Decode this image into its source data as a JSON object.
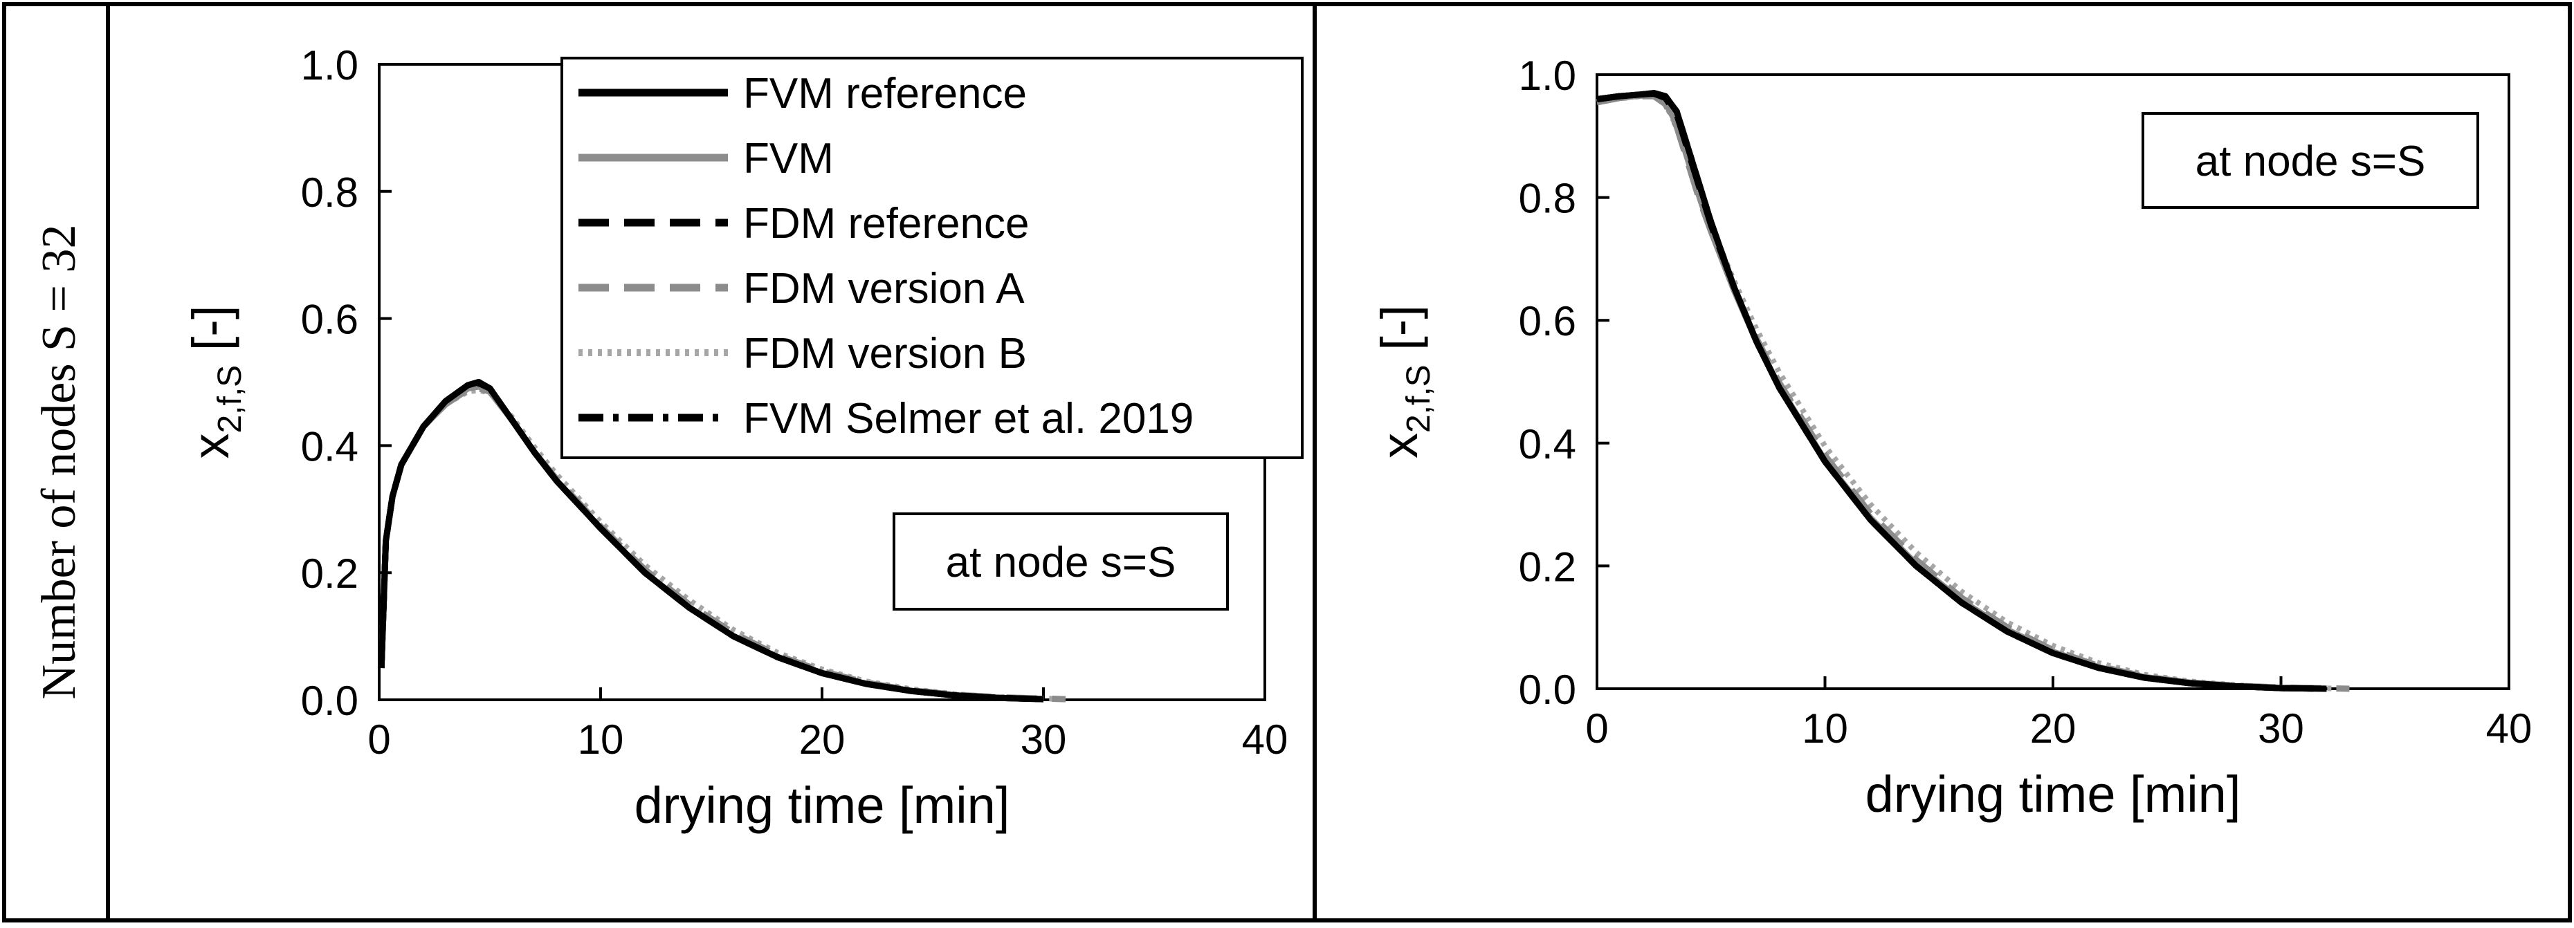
{
  "row_label": "Number of nodes S = 32",
  "legend": {
    "entries": [
      {
        "label": "FVM reference",
        "color": "#000000",
        "style": "solid"
      },
      {
        "label": "FVM",
        "color": "#8c8c8c",
        "style": "solid"
      },
      {
        "label": "FDM reference",
        "color": "#000000",
        "style": "dashed"
      },
      {
        "label": "FDM version A",
        "color": "#8c8c8c",
        "style": "dashed"
      },
      {
        "label": "FDM version B",
        "color": "#a6a6a6",
        "style": "dotted"
      },
      {
        "label": "FVM Selmer et al. 2019",
        "color": "#000000",
        "style": "dashdot"
      }
    ]
  },
  "chart_data": [
    {
      "type": "line",
      "annotation": "at node s=S",
      "xlabel": "drying time [min]",
      "ylabel": "x2,f,S [-]",
      "ylabel_main": "x",
      "ylabel_sub": "2,f,S",
      "ylabel_tail": "[-]",
      "xlim": [
        0,
        40
      ],
      "ylim": [
        0,
        1
      ],
      "x_ticks": [
        "0",
        "10",
        "20",
        "30",
        "40"
      ],
      "y_ticks": [
        "0.0",
        "0.2",
        "0.4",
        "0.6",
        "0.8",
        "1.0"
      ],
      "grid": false,
      "legend_position": "top-right",
      "series": [
        {
          "name": "FVM reference",
          "x": [
            0.1,
            0.3,
            0.6,
            1,
            2,
            3,
            4,
            4.5,
            5,
            6,
            7,
            8,
            10,
            12,
            14,
            16,
            18,
            20,
            22,
            24,
            26,
            28,
            30
          ],
          "y": [
            0.05,
            0.25,
            0.32,
            0.37,
            0.43,
            0.47,
            0.495,
            0.5,
            0.49,
            0.44,
            0.39,
            0.345,
            0.27,
            0.2,
            0.145,
            0.1,
            0.067,
            0.042,
            0.025,
            0.014,
            0.007,
            0.003,
            0.001
          ]
        },
        {
          "name": "FVM",
          "x": [
            0.1,
            0.3,
            0.6,
            1,
            2,
            3,
            4,
            4.5,
            5,
            6,
            7,
            8,
            10,
            12,
            14,
            16,
            18,
            20,
            22,
            24,
            26,
            28,
            30
          ],
          "y": [
            0.05,
            0.25,
            0.32,
            0.37,
            0.43,
            0.465,
            0.49,
            0.493,
            0.485,
            0.44,
            0.39,
            0.345,
            0.27,
            0.2,
            0.145,
            0.1,
            0.067,
            0.042,
            0.025,
            0.014,
            0.007,
            0.003,
            0.001
          ]
        },
        {
          "name": "FDM reference",
          "x": [
            0.1,
            0.3,
            0.6,
            1,
            2,
            3,
            4,
            4.5,
            5,
            6,
            7,
            8,
            10,
            12,
            14,
            16,
            18,
            20,
            22,
            24,
            26,
            28,
            30
          ],
          "y": [
            0.05,
            0.25,
            0.32,
            0.37,
            0.43,
            0.47,
            0.495,
            0.498,
            0.49,
            0.44,
            0.39,
            0.345,
            0.27,
            0.2,
            0.145,
            0.1,
            0.067,
            0.042,
            0.025,
            0.014,
            0.007,
            0.003,
            0.001
          ]
        },
        {
          "name": "FDM version A",
          "x": [
            0.1,
            0.3,
            0.6,
            1,
            2,
            3,
            4,
            4.5,
            5,
            6,
            7,
            8,
            10,
            12,
            14,
            16,
            18,
            20,
            22,
            24,
            26,
            28,
            31
          ],
          "y": [
            0.05,
            0.25,
            0.32,
            0.37,
            0.43,
            0.465,
            0.488,
            0.49,
            0.485,
            0.44,
            0.39,
            0.348,
            0.273,
            0.205,
            0.15,
            0.105,
            0.07,
            0.045,
            0.027,
            0.015,
            0.008,
            0.004,
            0.001
          ]
        },
        {
          "name": "FDM version B",
          "x": [
            0.1,
            0.3,
            0.6,
            1,
            2,
            3,
            4,
            4.5,
            5,
            6,
            7,
            8,
            10,
            12,
            14,
            16,
            18,
            20,
            22,
            24,
            26,
            28,
            31
          ],
          "y": [
            0.05,
            0.25,
            0.32,
            0.37,
            0.43,
            0.465,
            0.485,
            0.487,
            0.483,
            0.445,
            0.398,
            0.355,
            0.28,
            0.212,
            0.157,
            0.11,
            0.074,
            0.048,
            0.029,
            0.017,
            0.009,
            0.004,
            0.001
          ]
        },
        {
          "name": "FVM Selmer et al. 2019",
          "x": [
            0.1,
            0.3,
            0.6,
            1,
            2,
            3,
            4,
            4.5,
            5,
            6,
            7,
            8,
            10,
            12,
            14,
            16,
            18,
            20,
            22,
            24,
            26,
            28,
            30
          ],
          "y": [
            0.05,
            0.25,
            0.32,
            0.37,
            0.43,
            0.47,
            0.495,
            0.5,
            0.49,
            0.44,
            0.39,
            0.345,
            0.27,
            0.2,
            0.145,
            0.1,
            0.067,
            0.042,
            0.025,
            0.014,
            0.007,
            0.003,
            0.001
          ]
        }
      ]
    },
    {
      "type": "line",
      "annotation": "at node s=S",
      "xlabel": "drying time [min]",
      "ylabel": "x2,f,S [-]",
      "ylabel_main": "x",
      "ylabel_sub": "2,f,S",
      "ylabel_tail": "[-]",
      "xlim": [
        0,
        40
      ],
      "ylim": [
        0,
        1
      ],
      "x_ticks": [
        "0",
        "10",
        "20",
        "30",
        "40"
      ],
      "y_ticks": [
        "0.0",
        "0.2",
        "0.4",
        "0.6",
        "0.8",
        "1.0"
      ],
      "grid": false,
      "series": [
        {
          "name": "FVM reference",
          "x": [
            0,
            1,
            2,
            2.5,
            3,
            3.5,
            4,
            4.5,
            5,
            6,
            7,
            8,
            10,
            12,
            14,
            16,
            18,
            20,
            22,
            24,
            26,
            28,
            30,
            32
          ],
          "y": [
            0.96,
            0.965,
            0.968,
            0.97,
            0.965,
            0.94,
            0.88,
            0.82,
            0.76,
            0.655,
            0.565,
            0.49,
            0.37,
            0.275,
            0.2,
            0.14,
            0.093,
            0.058,
            0.034,
            0.018,
            0.009,
            0.004,
            0.001,
            0.0
          ]
        },
        {
          "name": "FVM",
          "x": [
            0,
            1,
            2,
            2.5,
            3,
            3.5,
            4,
            4.5,
            5,
            6,
            7,
            8,
            10,
            12,
            14,
            16,
            18,
            20,
            22,
            24,
            26,
            28,
            30,
            32
          ],
          "y": [
            0.955,
            0.963,
            0.966,
            0.966,
            0.955,
            0.92,
            0.86,
            0.8,
            0.745,
            0.65,
            0.565,
            0.492,
            0.372,
            0.278,
            0.203,
            0.143,
            0.096,
            0.06,
            0.035,
            0.019,
            0.01,
            0.004,
            0.001,
            0.0
          ]
        },
        {
          "name": "FDM reference",
          "x": [
            0,
            1,
            2,
            2.5,
            3,
            3.5,
            4,
            4.5,
            5,
            6,
            7,
            8,
            10,
            12,
            14,
            16,
            18,
            20,
            22,
            24,
            26,
            28,
            30,
            32
          ],
          "y": [
            0.96,
            0.965,
            0.968,
            0.969,
            0.962,
            0.935,
            0.875,
            0.815,
            0.755,
            0.655,
            0.565,
            0.49,
            0.37,
            0.275,
            0.2,
            0.14,
            0.093,
            0.058,
            0.034,
            0.018,
            0.009,
            0.004,
            0.001,
            0.0
          ]
        },
        {
          "name": "FDM version A",
          "x": [
            0,
            1,
            2,
            2.5,
            3,
            3.5,
            4,
            4.5,
            5,
            6,
            7,
            8,
            10,
            12,
            14,
            16,
            18,
            20,
            22,
            24,
            26,
            28,
            30,
            33
          ],
          "y": [
            0.955,
            0.962,
            0.965,
            0.965,
            0.952,
            0.915,
            0.855,
            0.795,
            0.745,
            0.652,
            0.57,
            0.498,
            0.38,
            0.285,
            0.21,
            0.148,
            0.1,
            0.063,
            0.037,
            0.02,
            0.01,
            0.005,
            0.002,
            0.0
          ]
        },
        {
          "name": "FDM version B",
          "x": [
            0,
            1,
            2,
            2.5,
            3,
            3.5,
            4,
            4.5,
            5,
            6,
            7,
            8,
            10,
            12,
            14,
            16,
            18,
            20,
            22,
            24,
            26,
            28,
            30,
            33
          ],
          "y": [
            0.955,
            0.962,
            0.965,
            0.965,
            0.952,
            0.915,
            0.86,
            0.805,
            0.755,
            0.665,
            0.585,
            0.515,
            0.395,
            0.3,
            0.222,
            0.158,
            0.108,
            0.07,
            0.042,
            0.023,
            0.012,
            0.006,
            0.002,
            0.0
          ]
        },
        {
          "name": "FVM Selmer et al. 2019",
          "x": [
            0,
            1,
            2,
            2.5,
            3,
            3.5,
            4,
            4.5,
            5,
            6,
            7,
            8,
            10,
            12,
            14,
            16,
            18,
            20,
            22,
            24,
            26,
            28,
            30,
            32
          ],
          "y": [
            0.96,
            0.965,
            0.968,
            0.97,
            0.965,
            0.94,
            0.88,
            0.82,
            0.76,
            0.655,
            0.565,
            0.49,
            0.37,
            0.275,
            0.2,
            0.14,
            0.093,
            0.058,
            0.034,
            0.018,
            0.009,
            0.004,
            0.001,
            0.0
          ]
        }
      ]
    }
  ]
}
